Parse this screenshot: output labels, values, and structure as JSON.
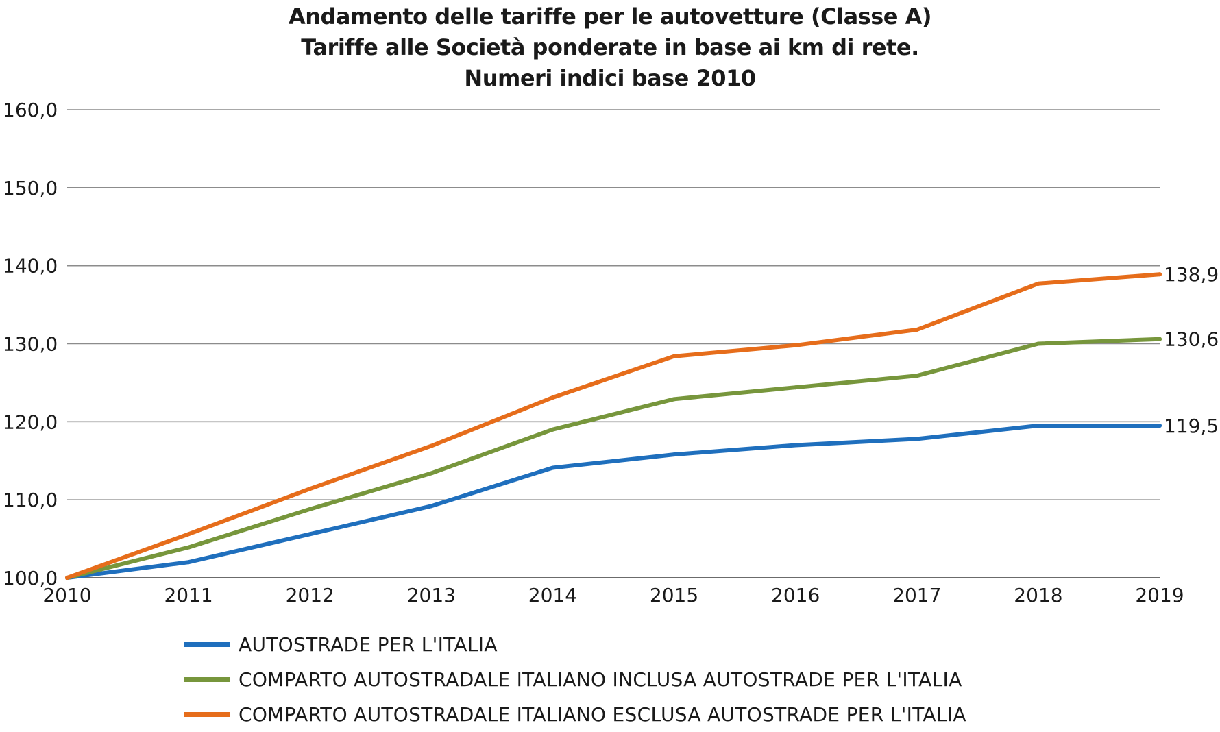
{
  "chart_data": {
    "type": "line",
    "title": [
      "Andamento delle tariffe per le autovetture (Classe A)",
      "Tariffe alle Società ponderate in base ai km di rete.",
      "Numeri indici base 2010"
    ],
    "xlabel": "",
    "ylabel": "",
    "categories": [
      "2010",
      "2011",
      "2012",
      "2013",
      "2014",
      "2015",
      "2016",
      "2017",
      "2018",
      "2019"
    ],
    "ylim": [
      100,
      160
    ],
    "yticks": [
      100,
      110,
      120,
      130,
      140,
      150,
      160
    ],
    "ytick_labels": [
      "100,0",
      "110,0",
      "120,0",
      "130,0",
      "140,0",
      "150,0",
      "160,0"
    ],
    "grid": true,
    "legend_position": "bottom",
    "series": [
      {
        "name": "AUTOSTRADE PER L'ITALIA",
        "color": "#1f6fbd",
        "values": [
          100.0,
          102.0,
          105.6,
          109.2,
          114.1,
          115.8,
          117.0,
          117.8,
          119.5,
          119.5
        ],
        "end_label": "119,5"
      },
      {
        "name": "COMPARTO AUTOSTRADALE ITALIANO INCLUSA AUTOSTRADE PER L'ITALIA",
        "color": "#77963c",
        "values": [
          100.0,
          103.9,
          108.8,
          113.4,
          119.0,
          122.9,
          124.4,
          125.9,
          130.0,
          130.6
        ],
        "end_label": "130,6"
      },
      {
        "name": "COMPARTO AUTOSTRADALE ITALIANO ESCLUSA AUTOSTRADE PER L'ITALIA",
        "color": "#e66d1b",
        "values": [
          100.0,
          105.6,
          111.4,
          116.9,
          123.1,
          128.4,
          129.8,
          131.8,
          137.7,
          138.9
        ],
        "end_label": "138,9"
      }
    ]
  }
}
